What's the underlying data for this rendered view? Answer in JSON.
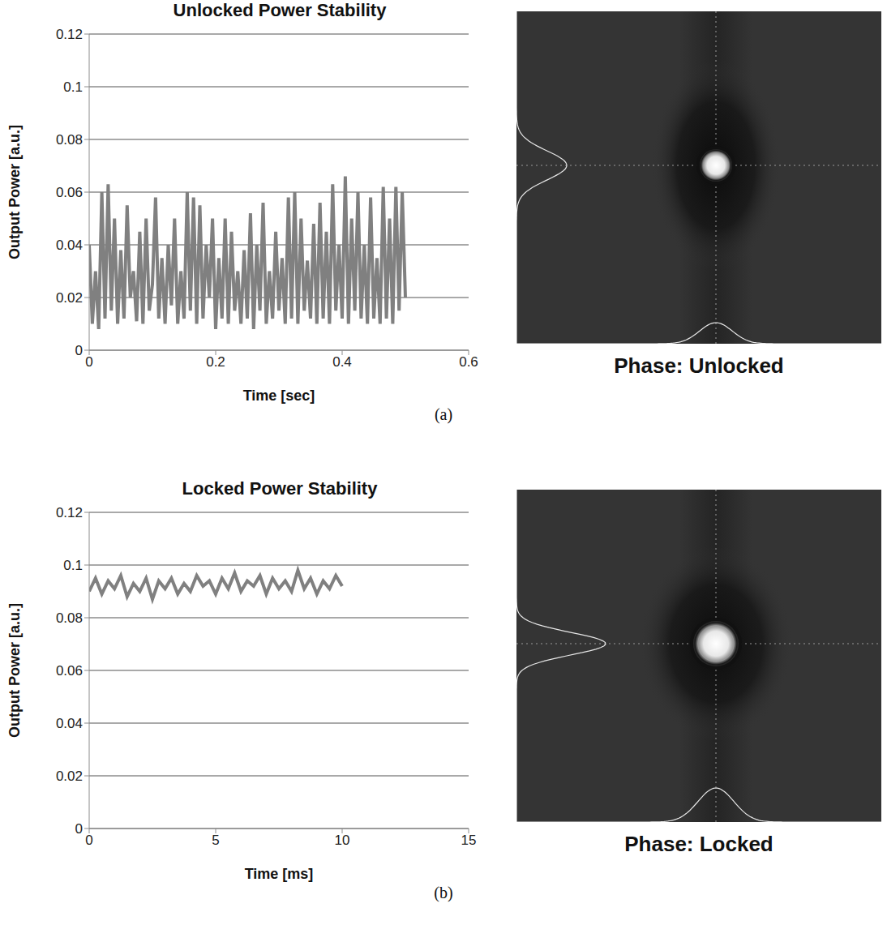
{
  "chart_data": [
    {
      "type": "line",
      "title": "Unlocked Power Stability",
      "x_label": "Time [sec]",
      "y_label": "Output Power [a.u.]",
      "caption": "Phase: Unlocked",
      "panel_label": "(a)",
      "color": "#808080",
      "grid": true,
      "xlim": [
        0,
        0.6
      ],
      "xticks": [
        0,
        0.2,
        0.4,
        0.6
      ],
      "ylim": [
        0,
        0.12
      ],
      "yticks": [
        0,
        0.02,
        0.04,
        0.06,
        0.08,
        0.1,
        0.12
      ],
      "x": [
        0,
        0.005,
        0.01,
        0.015,
        0.02,
        0.025,
        0.03,
        0.035,
        0.04,
        0.045,
        0.05,
        0.055,
        0.06,
        0.065,
        0.07,
        0.075,
        0.08,
        0.085,
        0.09,
        0.095,
        0.1,
        0.105,
        0.11,
        0.115,
        0.12,
        0.125,
        0.13,
        0.135,
        0.14,
        0.145,
        0.15,
        0.155,
        0.16,
        0.165,
        0.17,
        0.175,
        0.18,
        0.185,
        0.19,
        0.195,
        0.2,
        0.205,
        0.21,
        0.215,
        0.22,
        0.225,
        0.23,
        0.235,
        0.24,
        0.245,
        0.25,
        0.255,
        0.26,
        0.265,
        0.27,
        0.275,
        0.28,
        0.285,
        0.29,
        0.295,
        0.3,
        0.305,
        0.31,
        0.315,
        0.32,
        0.325,
        0.33,
        0.335,
        0.34,
        0.345,
        0.35,
        0.355,
        0.36,
        0.365,
        0.37,
        0.375,
        0.38,
        0.385,
        0.39,
        0.395,
        0.4,
        0.405,
        0.41,
        0.415,
        0.42,
        0.425,
        0.43,
        0.435,
        0.44,
        0.445,
        0.45,
        0.455,
        0.46,
        0.465,
        0.47,
        0.475,
        0.48,
        0.485,
        0.49,
        0.495,
        0.5
      ],
      "values": [
        0.04,
        0.01,
        0.03,
        0.008,
        0.06,
        0.012,
        0.063,
        0.015,
        0.05,
        0.01,
        0.038,
        0.012,
        0.055,
        0.02,
        0.03,
        0.011,
        0.045,
        0.01,
        0.05,
        0.015,
        0.025,
        0.058,
        0.012,
        0.035,
        0.01,
        0.04,
        0.017,
        0.05,
        0.01,
        0.03,
        0.012,
        0.06,
        0.015,
        0.058,
        0.01,
        0.055,
        0.012,
        0.04,
        0.02,
        0.05,
        0.008,
        0.035,
        0.012,
        0.05,
        0.01,
        0.045,
        0.015,
        0.03,
        0.01,
        0.038,
        0.012,
        0.052,
        0.008,
        0.04,
        0.015,
        0.056,
        0.01,
        0.03,
        0.012,
        0.045,
        0.015,
        0.035,
        0.01,
        0.058,
        0.012,
        0.06,
        0.01,
        0.05,
        0.015,
        0.034,
        0.012,
        0.048,
        0.01,
        0.056,
        0.012,
        0.045,
        0.01,
        0.063,
        0.015,
        0.04,
        0.012,
        0.066,
        0.01,
        0.05,
        0.015,
        0.06,
        0.012,
        0.04,
        0.01,
        0.058,
        0.012,
        0.035,
        0.01,
        0.062,
        0.012,
        0.05,
        0.01,
        0.062,
        0.015,
        0.06,
        0.02
      ]
    },
    {
      "type": "line",
      "title": "Locked Power Stability",
      "x_label": "Time [ms]",
      "y_label": "Output Power [a.u.]",
      "caption": "Phase: Locked",
      "panel_label": "(b)",
      "color": "#808080",
      "grid": true,
      "xlim": [
        0,
        15
      ],
      "xticks": [
        0,
        5,
        10,
        15
      ],
      "ylim": [
        0,
        0.12
      ],
      "yticks": [
        0,
        0.02,
        0.04,
        0.06,
        0.08,
        0.1,
        0.12
      ],
      "x": [
        0,
        0.25,
        0.5,
        0.75,
        1,
        1.25,
        1.5,
        1.75,
        2,
        2.25,
        2.5,
        2.75,
        3,
        3.25,
        3.5,
        3.75,
        4,
        4.25,
        4.5,
        4.75,
        5,
        5.25,
        5.5,
        5.75,
        6,
        6.25,
        6.5,
        6.75,
        7,
        7.25,
        7.5,
        7.75,
        8,
        8.25,
        8.5,
        8.75,
        9,
        9.25,
        9.5,
        9.75,
        10
      ],
      "values": [
        0.09,
        0.095,
        0.089,
        0.094,
        0.091,
        0.096,
        0.088,
        0.093,
        0.09,
        0.095,
        0.087,
        0.094,
        0.091,
        0.095,
        0.089,
        0.093,
        0.09,
        0.096,
        0.092,
        0.094,
        0.089,
        0.095,
        0.091,
        0.097,
        0.09,
        0.094,
        0.092,
        0.096,
        0.089,
        0.095,
        0.091,
        0.094,
        0.09,
        0.098,
        0.091,
        0.095,
        0.089,
        0.094,
        0.091,
        0.096,
        0.092
      ]
    }
  ]
}
